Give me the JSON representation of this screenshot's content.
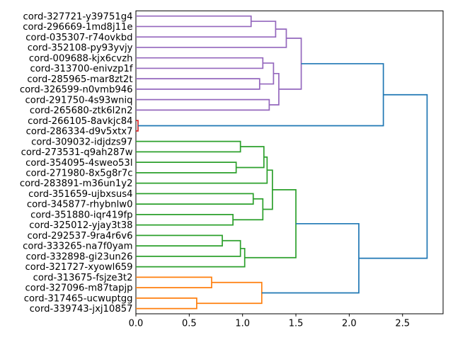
{
  "chart_data": {
    "type": "dendrogram",
    "orientation": "right",
    "title": "",
    "xlabel": "",
    "ylabel": "",
    "grid": false,
    "legend": false,
    "xlim": [
      0,
      2.88
    ],
    "xticks": [
      "0.0",
      "0.5",
      "1.0",
      "1.5",
      "2.0",
      "2.5"
    ],
    "xtick_values": [
      0.0,
      0.5,
      1.0,
      1.5,
      2.0,
      2.5
    ],
    "colors": {
      "background": "#ffffff",
      "axis": "#000000",
      "text": "#000000",
      "palette": {
        "purple": "#9467bd",
        "red": "#d62728",
        "green": "#2ca02c",
        "orange": "#ff7f0e",
        "blue": "#1f77b4"
      }
    },
    "leaves": [
      "cord-327721-y39751g4",
      "cord-296669-1md8j11e",
      "cord-035307-r74ovkbd",
      "cord-352108-py93yvjy",
      "cord-009688-kjx6cvzh",
      "cord-313700-enivzp1f",
      "cord-285965-mar8zt2t",
      "cord-326599-n0vmb946",
      "cord-291750-4s93wniq",
      "cord-265680-ztk6l2n2",
      "cord-266105-8avkjc84",
      "cord-286334-d9v5xtx7",
      "cord-309032-idjdzs97",
      "cord-273531-q9ah287w",
      "cord-354095-4sweo53l",
      "cord-271980-8x5g8r7c",
      "cord-283891-m36un1y2",
      "cord-351659-ujbxsus4",
      "cord-345877-rhybnlw0",
      "cord-351880-iqr419fp",
      "cord-325012-yjay3t38",
      "cord-292537-9ra4r6v6",
      "cord-333265-na7f0yam",
      "cord-332898-gi23un26",
      "cord-321727-xyowl659",
      "cord-313675-fsjze3t2",
      "cord-327096-m87tapjp",
      "cord-317465-ucwuptgg",
      "cord-339743-jxj10857"
    ],
    "merges": [
      {
        "id": "M0",
        "a": "L0",
        "b": "L1",
        "distance": 1.08,
        "color": "purple"
      },
      {
        "id": "M1",
        "a": "M0",
        "b": "L2",
        "distance": 1.31,
        "color": "purple"
      },
      {
        "id": "M2",
        "a": "M1",
        "b": "L3",
        "distance": 1.41,
        "color": "purple"
      },
      {
        "id": "M3",
        "a": "L4",
        "b": "L5",
        "distance": 1.19,
        "color": "purple"
      },
      {
        "id": "M4",
        "a": "L6",
        "b": "L7",
        "distance": 1.16,
        "color": "purple"
      },
      {
        "id": "M5",
        "a": "M3",
        "b": "M4",
        "distance": 1.29,
        "color": "purple"
      },
      {
        "id": "M6",
        "a": "L8",
        "b": "L9",
        "distance": 1.25,
        "color": "purple"
      },
      {
        "id": "M7",
        "a": "M5",
        "b": "M6",
        "distance": 1.34,
        "color": "purple"
      },
      {
        "id": "M8",
        "a": "M2",
        "b": "M7",
        "distance": 1.55,
        "color": "purple"
      },
      {
        "id": "M9",
        "a": "L10",
        "b": "L11",
        "distance": 0.02,
        "color": "red"
      },
      {
        "id": "M10",
        "a": "L12",
        "b": "L13",
        "distance": 0.98,
        "color": "green"
      },
      {
        "id": "M11",
        "a": "L14",
        "b": "L15",
        "distance": 0.94,
        "color": "green"
      },
      {
        "id": "M12",
        "a": "M10",
        "b": "M11",
        "distance": 1.2,
        "color": "green"
      },
      {
        "id": "M13",
        "a": "M12",
        "b": "L16",
        "distance": 1.23,
        "color": "green"
      },
      {
        "id": "M14",
        "a": "L17",
        "b": "L18",
        "distance": 1.1,
        "color": "green"
      },
      {
        "id": "M15",
        "a": "L19",
        "b": "L20",
        "distance": 0.91,
        "color": "green"
      },
      {
        "id": "M16",
        "a": "M14",
        "b": "M15",
        "distance": 1.19,
        "color": "green"
      },
      {
        "id": "M17",
        "a": "M13",
        "b": "M16",
        "distance": 1.28,
        "color": "green"
      },
      {
        "id": "M18",
        "a": "L21",
        "b": "L22",
        "distance": 0.81,
        "color": "green"
      },
      {
        "id": "M19",
        "a": "M18",
        "b": "L23",
        "distance": 0.98,
        "color": "green"
      },
      {
        "id": "M20",
        "a": "M19",
        "b": "L24",
        "distance": 1.02,
        "color": "green"
      },
      {
        "id": "M21",
        "a": "M17",
        "b": "M20",
        "distance": 1.5,
        "color": "green"
      },
      {
        "id": "M22",
        "a": "L25",
        "b": "L26",
        "distance": 0.71,
        "color": "orange"
      },
      {
        "id": "M23",
        "a": "L27",
        "b": "L28",
        "distance": 0.57,
        "color": "orange"
      },
      {
        "id": "M24",
        "a": "M22",
        "b": "M23",
        "distance": 1.18,
        "color": "orange"
      },
      {
        "id": "M25",
        "a": "M8",
        "b": "M9",
        "distance": 2.32,
        "color": "blue"
      },
      {
        "id": "M26",
        "a": "M21",
        "b": "M24",
        "distance": 2.09,
        "color": "blue"
      },
      {
        "id": "M27",
        "a": "M25",
        "b": "M26",
        "distance": 2.73,
        "color": "blue"
      }
    ]
  }
}
